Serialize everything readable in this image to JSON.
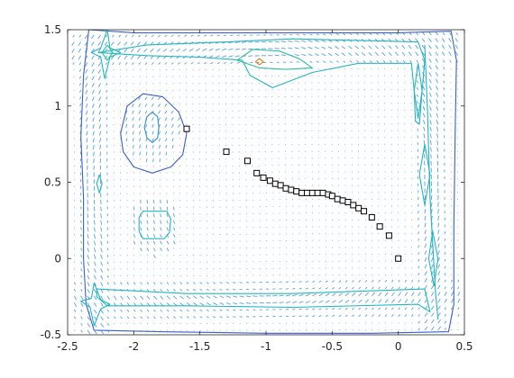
{
  "colors": {
    "axis": "#262626",
    "background": "#ffffff",
    "arrows": "#3a8fd6",
    "markers": "#000000",
    "contour_levels": [
      "#3a5fcd",
      "#2f8fd0",
      "#22b5c0",
      "#2fbfa0",
      "#e07a10"
    ]
  },
  "chart_data": {
    "type": "scatter",
    "title": "",
    "xlabel": "",
    "ylabel": "",
    "xlim": [
      -2.5,
      0.5
    ],
    "ylim": [
      -0.5,
      1.5
    ],
    "grid": false,
    "legend": "none",
    "box": true,
    "x_ticks": [
      -2.5,
      -2,
      -1.5,
      -1,
      -0.5,
      0,
      0.5
    ],
    "x_tick_labels": [
      "-2.5",
      "-2",
      "-1.5",
      "-1",
      "-0.5",
      "0",
      "0.5"
    ],
    "y_ticks": [
      -0.5,
      0,
      0.5,
      1,
      1.5
    ],
    "y_tick_labels": [
      "-0.5",
      "0",
      "0.5",
      "1",
      "1.5"
    ],
    "series": [
      {
        "marker": "open-square",
        "x": [
          -1.6,
          -1.3,
          -1.14,
          -1.07,
          -1.02,
          -0.97,
          -0.93,
          -0.89,
          -0.85,
          -0.81,
          -0.77,
          -0.73,
          -0.69,
          -0.65,
          -0.61,
          -0.57,
          -0.53,
          -0.5,
          -0.46,
          -0.42,
          -0.38,
          -0.34,
          -0.3,
          -0.26,
          -0.2,
          -0.14,
          -0.07,
          0.0
        ],
        "y": [
          0.85,
          0.7,
          0.64,
          0.56,
          0.53,
          0.51,
          0.49,
          0.48,
          0.46,
          0.45,
          0.44,
          0.43,
          0.43,
          0.43,
          0.43,
          0.43,
          0.42,
          0.41,
          0.39,
          0.38,
          0.37,
          0.35,
          0.33,
          0.31,
          0.27,
          0.21,
          0.15,
          0.0
        ]
      }
    ],
    "contours": [
      {
        "name": "outer-boundary",
        "level": 0,
        "points": [
          [
            -2.34,
            1.5
          ],
          [
            -2.38,
            1.2
          ],
          [
            -2.4,
            0.8
          ],
          [
            -2.38,
            0.4
          ],
          [
            -2.38,
            0
          ],
          [
            -2.36,
            -0.3
          ],
          [
            -2.3,
            -0.47
          ],
          [
            -1.8,
            -0.48
          ],
          [
            -1,
            -0.49
          ],
          [
            -0.2,
            -0.49
          ],
          [
            0.38,
            -0.48
          ],
          [
            0.42,
            -0.3
          ],
          [
            0.42,
            0.2
          ],
          [
            0.43,
            0.8
          ],
          [
            0.44,
            1.3
          ],
          [
            0.4,
            1.49
          ],
          [
            0,
            1.48
          ],
          [
            -1,
            1.48
          ],
          [
            -2,
            1.48
          ],
          [
            -2.34,
            1.5
          ]
        ]
      },
      {
        "name": "loop-left",
        "level": 0,
        "points": [
          [
            -2.1,
            0.82
          ],
          [
            -2.05,
            1.0
          ],
          [
            -1.93,
            1.08
          ],
          [
            -1.78,
            1.06
          ],
          [
            -1.66,
            0.96
          ],
          [
            -1.6,
            0.82
          ],
          [
            -1.63,
            0.68
          ],
          [
            -1.72,
            0.6
          ],
          [
            -1.86,
            0.56
          ],
          [
            -2.0,
            0.6
          ],
          [
            -2.08,
            0.7
          ],
          [
            -2.1,
            0.82
          ]
        ]
      },
      {
        "name": "loop-left-inner",
        "level": 1,
        "points": [
          [
            -1.92,
            0.86
          ],
          [
            -1.9,
            0.93
          ],
          [
            -1.86,
            0.96
          ],
          [
            -1.82,
            0.93
          ],
          [
            -1.81,
            0.86
          ],
          [
            -1.82,
            0.79
          ],
          [
            -1.86,
            0.76
          ],
          [
            -1.9,
            0.79
          ],
          [
            -1.92,
            0.86
          ]
        ]
      },
      {
        "name": "top-outer",
        "level": 2,
        "points": [
          [
            -2.27,
            1.35
          ],
          [
            -1.9,
            1.4
          ],
          [
            -1.3,
            1.42
          ],
          [
            -0.8,
            1.44
          ],
          [
            -0.3,
            1.43
          ],
          [
            0.15,
            1.42
          ],
          [
            0.2,
            1.3
          ],
          [
            0.18,
            1.1
          ],
          [
            0.15,
            0.92
          ],
          [
            0.12,
            1.1
          ],
          [
            0.1,
            1.28
          ],
          [
            -0.3,
            1.28
          ],
          [
            -0.65,
            1.22
          ],
          [
            -0.95,
            1.12
          ],
          [
            -1.12,
            1.2
          ],
          [
            -1.18,
            1.3
          ],
          [
            -1.5,
            1.32
          ],
          [
            -1.9,
            1.33
          ],
          [
            -2.27,
            1.35
          ]
        ]
      },
      {
        "name": "top-inner",
        "level": 3,
        "points": [
          [
            -1.22,
            1.3
          ],
          [
            -1.1,
            1.37
          ],
          [
            -0.9,
            1.36
          ],
          [
            -0.75,
            1.31
          ],
          [
            -0.65,
            1.25
          ],
          [
            -0.85,
            1.24
          ],
          [
            -1.05,
            1.25
          ],
          [
            -1.22,
            1.3
          ]
        ]
      },
      {
        "name": "top-hot",
        "level": 4,
        "points": [
          [
            -1.08,
            1.29
          ],
          [
            -1.05,
            1.31
          ],
          [
            -1.02,
            1.29
          ],
          [
            -1.05,
            1.27
          ],
          [
            -1.08,
            1.29
          ]
        ]
      },
      {
        "name": "star-top-left",
        "level": 2,
        "points": [
          [
            -2.2,
            1.5
          ],
          [
            -2.18,
            1.38
          ],
          [
            -2.1,
            1.35
          ],
          [
            -2.18,
            1.32
          ],
          [
            -2.22,
            1.18
          ],
          [
            -2.25,
            1.32
          ],
          [
            -2.32,
            1.35
          ],
          [
            -2.25,
            1.38
          ],
          [
            -2.2,
            1.5
          ]
        ]
      },
      {
        "name": "star-top-left-inner",
        "level": 3,
        "points": [
          [
            -2.2,
            1.4
          ],
          [
            -2.16,
            1.35
          ],
          [
            -2.2,
            1.3
          ],
          [
            -2.24,
            1.35
          ],
          [
            -2.2,
            1.4
          ]
        ]
      },
      {
        "name": "left-diamond",
        "level": 2,
        "points": [
          [
            -2.26,
            0.55
          ],
          [
            -2.24,
            0.49
          ],
          [
            -2.26,
            0.43
          ],
          [
            -2.28,
            0.49
          ],
          [
            -2.26,
            0.55
          ]
        ]
      },
      {
        "name": "left-blob",
        "level": 2,
        "points": [
          [
            -1.96,
            0.27
          ],
          [
            -1.93,
            0.31
          ],
          [
            -1.75,
            0.31
          ],
          [
            -1.72,
            0.26
          ],
          [
            -1.73,
            0.17
          ],
          [
            -1.77,
            0.13
          ],
          [
            -1.93,
            0.13
          ],
          [
            -1.96,
            0.18
          ],
          [
            -1.96,
            0.27
          ]
        ]
      },
      {
        "name": "right-spindle-upper",
        "level": 2,
        "points": [
          [
            0.15,
            1.28
          ],
          [
            0.18,
            1.1
          ],
          [
            0.16,
            0.88
          ],
          [
            0.13,
            0.9
          ],
          [
            0.12,
            1.1
          ],
          [
            0.15,
            1.28
          ]
        ]
      },
      {
        "name": "right-spindle-mid",
        "level": 2,
        "points": [
          [
            0.2,
            0.75
          ],
          [
            0.24,
            0.55
          ],
          [
            0.2,
            0.35
          ],
          [
            0.16,
            0.55
          ],
          [
            0.2,
            0.75
          ]
        ]
      },
      {
        "name": "right-spindle-low",
        "level": 2,
        "points": [
          [
            0.26,
            0.18
          ],
          [
            0.3,
            0.0
          ],
          [
            0.27,
            -0.18
          ],
          [
            0.23,
            0.0
          ],
          [
            0.26,
            0.18
          ]
        ]
      },
      {
        "name": "bottom-outer",
        "level": 2,
        "points": [
          [
            -2.28,
            -0.2
          ],
          [
            -1.6,
            -0.23
          ],
          [
            -0.8,
            -0.23
          ],
          [
            0.2,
            -0.2
          ],
          [
            0.24,
            -0.35
          ],
          [
            0.15,
            -0.3
          ],
          [
            -0.8,
            -0.32
          ],
          [
            -1.6,
            -0.31
          ],
          [
            -2.2,
            -0.31
          ],
          [
            -2.28,
            -0.25
          ],
          [
            -2.28,
            -0.2
          ]
        ]
      },
      {
        "name": "bottom-left-star",
        "level": 2,
        "points": [
          [
            -2.3,
            -0.16
          ],
          [
            -2.25,
            -0.27
          ],
          [
            -2.18,
            -0.3
          ],
          [
            -2.25,
            -0.33
          ],
          [
            -2.3,
            -0.44
          ],
          [
            -2.33,
            -0.32
          ],
          [
            -2.4,
            -0.28
          ],
          [
            -2.32,
            -0.26
          ],
          [
            -2.3,
            -0.16
          ]
        ]
      },
      {
        "name": "right-edge-line",
        "level": 2,
        "points": [
          [
            0.2,
            1.4
          ],
          [
            0.22,
            1.0
          ],
          [
            0.24,
            0.4
          ],
          [
            0.28,
            -0.2
          ],
          [
            0.3,
            -0.4
          ]
        ]
      }
    ]
  }
}
